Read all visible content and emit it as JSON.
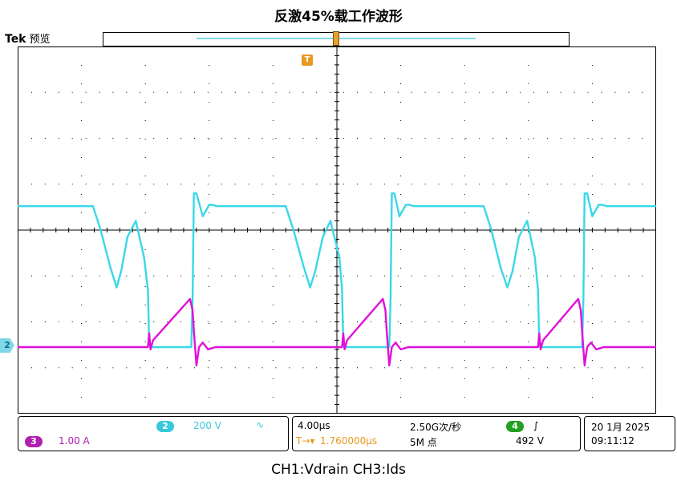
{
  "title": "反激45%载工作波形",
  "caption": "CH1:Vdrain  CH3:Ids",
  "brand": {
    "name": "Tek",
    "mode": "预览"
  },
  "trigger_flag": "T",
  "ch2_marker": "2",
  "panel_channels": {
    "ch2_badge": "2",
    "ch2_scale": "200 V",
    "ch2_coupling": "∿",
    "ch3_badge": "3",
    "ch3_scale": "1.00 A"
  },
  "panel_horizontal": {
    "timebase": "4.00µs",
    "sample_rate": "2.50G次/秒",
    "trigger_pos_icon": "T→▾",
    "trigger_pos": "1.760000µs",
    "record_length": "5M 点",
    "trig_badge": "4",
    "trig_slope": "∫",
    "trig_level": "492 V"
  },
  "panel_date": {
    "date": "20 1月 2025",
    "time": "09:11:12"
  },
  "colors": {
    "ch_cyan": "#38d8e8",
    "ch_magenta": "#e010d8",
    "grid": "#000000",
    "trigger": "#e89a20"
  },
  "chart_data": {
    "type": "line",
    "x_unit": "div",
    "y_unit": "div",
    "xlim": [
      0,
      10
    ],
    "ylim": [
      -4,
      4
    ],
    "grid": true,
    "series": [
      {
        "color": "#38d8e8",
        "x": [
          0,
          1.18,
          1.3,
          1.45,
          1.55,
          1.62,
          1.72,
          1.85,
          1.98,
          2.04,
          2.06,
          2.08,
          2.6,
          2.72,
          2.74,
          2.76,
          2.8,
          2.9,
          3.0,
          3.05,
          3.12,
          4.2,
          4.32,
          4.48,
          4.58,
          4.66,
          4.78,
          4.9,
          5.04,
          5.08,
          5.1,
          5.12,
          5.7,
          5.82,
          5.84,
          5.86,
          5.9,
          5.98,
          6.08,
          6.14,
          6.2,
          7.3,
          7.42,
          7.56,
          7.67,
          7.75,
          7.85,
          7.98,
          8.1,
          8.15,
          8.17,
          8.19,
          8.72,
          8.84,
          8.86,
          8.88,
          8.92,
          9.0,
          9.1,
          9.16,
          9.22,
          10
        ],
        "y": [
          0.52,
          0.52,
          0.0,
          -0.8,
          -1.25,
          -0.9,
          -0.15,
          0.2,
          -0.6,
          -1.3,
          -2.5,
          -2.55,
          -2.55,
          -2.55,
          -1.5,
          0.8,
          0.8,
          0.3,
          0.55,
          0.55,
          0.52,
          0.52,
          0.0,
          -0.8,
          -1.25,
          -0.9,
          -0.15,
          0.2,
          -0.6,
          -1.3,
          -2.5,
          -2.55,
          -2.55,
          -2.55,
          -1.5,
          0.8,
          0.8,
          0.3,
          0.55,
          0.55,
          0.52,
          0.52,
          0.0,
          -0.8,
          -1.25,
          -0.9,
          -0.15,
          0.2,
          -0.6,
          -1.3,
          -2.5,
          -2.55,
          -2.55,
          -2.55,
          -1.5,
          0.8,
          0.8,
          0.3,
          0.55,
          0.55,
          0.52,
          0.52
        ]
      },
      {
        "color": "#e010d8",
        "x": [
          0,
          2.04,
          2.06,
          2.08,
          2.12,
          2.7,
          2.74,
          2.76,
          2.8,
          2.84,
          2.9,
          2.98,
          3.1,
          5.08,
          5.1,
          5.12,
          5.16,
          5.72,
          5.76,
          5.78,
          5.82,
          5.86,
          5.92,
          6.0,
          6.12,
          8.15,
          8.17,
          8.19,
          8.23,
          8.78,
          8.82,
          8.84,
          8.88,
          8.92,
          8.98,
          9.06,
          9.18,
          10
        ],
        "y": [
          -2.55,
          -2.55,
          -2.25,
          -2.6,
          -2.4,
          -1.5,
          -1.75,
          -2.2,
          -2.95,
          -2.55,
          -2.45,
          -2.6,
          -2.55,
          -2.55,
          -2.25,
          -2.6,
          -2.4,
          -1.5,
          -1.75,
          -2.2,
          -2.95,
          -2.55,
          -2.45,
          -2.6,
          -2.55,
          -2.55,
          -2.25,
          -2.6,
          -2.4,
          -1.5,
          -1.75,
          -2.2,
          -2.95,
          -2.55,
          -2.45,
          -2.6,
          -2.55,
          -2.55
        ]
      }
    ]
  }
}
